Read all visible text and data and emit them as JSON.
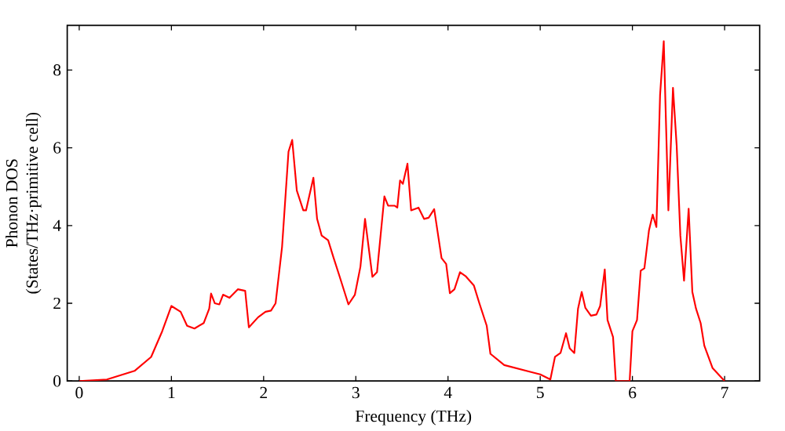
{
  "chart_data": {
    "type": "line",
    "xlabel": "Frequency (THz)",
    "ylabel": "Phonon DOS\n(States/THz·primitive cell)",
    "xlim": [
      -0.13,
      7.38
    ],
    "ylim": [
      0,
      9.15
    ],
    "xticks": [
      0,
      1,
      2,
      3,
      4,
      5,
      6,
      7
    ],
    "yticks": [
      0,
      2,
      4,
      6,
      8
    ],
    "grid": false,
    "marker": "none",
    "line_style": "solid",
    "series": [
      {
        "color": "#ff0000",
        "x": [
          0,
          0.3,
          0.6,
          0.78,
          0.9,
          1.0,
          1.1,
          1.17,
          1.25,
          1.35,
          1.41,
          1.43,
          1.47,
          1.52,
          1.56,
          1.63,
          1.72,
          1.8,
          1.84,
          1.94,
          2.02,
          2.08,
          2.13,
          2.2,
          2.27,
          2.31,
          2.36,
          2.43,
          2.46,
          2.54,
          2.58,
          2.63,
          2.7,
          2.76,
          2.82,
          2.92,
          2.99,
          3.05,
          3.1,
          3.18,
          3.23,
          3.31,
          3.35,
          3.42,
          3.45,
          3.48,
          3.51,
          3.56,
          3.6,
          3.68,
          3.74,
          3.79,
          3.85,
          3.93,
          3.98,
          4.02,
          4.07,
          4.13,
          4.19,
          4.28,
          4.34,
          4.42,
          4.46,
          4.61,
          4.9,
          5.0,
          5.11,
          5.16,
          5.22,
          5.28,
          5.32,
          5.37,
          5.41,
          5.45,
          5.49,
          5.55,
          5.61,
          5.65,
          5.7,
          5.73,
          5.79,
          5.82,
          5.97,
          6.0,
          6.05,
          6.09,
          6.13,
          6.18,
          6.22,
          6.26,
          6.3,
          6.34,
          6.39,
          6.44,
          6.48,
          6.52,
          6.56,
          6.61,
          6.65,
          6.69,
          6.74,
          6.78,
          6.87,
          7.0
        ],
        "values": [
          0,
          0.04,
          0.26,
          0.62,
          1.28,
          1.93,
          1.78,
          1.42,
          1.35,
          1.49,
          1.86,
          2.25,
          2.0,
          1.97,
          2.22,
          2.14,
          2.36,
          2.32,
          1.38,
          1.64,
          1.78,
          1.81,
          2.0,
          3.45,
          5.9,
          6.2,
          4.9,
          4.39,
          4.39,
          5.23,
          4.17,
          3.74,
          3.62,
          3.16,
          2.72,
          1.97,
          2.22,
          2.94,
          4.17,
          2.68,
          2.8,
          4.75,
          4.51,
          4.51,
          4.46,
          5.16,
          5.07,
          5.59,
          4.39,
          4.46,
          4.17,
          4.2,
          4.42,
          3.16,
          3.01,
          2.26,
          2.36,
          2.8,
          2.7,
          2.46,
          2.0,
          1.42,
          0.7,
          0.41,
          0.23,
          0.17,
          0.04,
          0.62,
          0.72,
          1.23,
          0.84,
          0.72,
          1.86,
          2.29,
          1.88,
          1.68,
          1.71,
          1.93,
          2.87,
          1.57,
          1.13,
          0,
          0,
          1.28,
          1.57,
          2.84,
          2.9,
          3.88,
          4.28,
          3.96,
          7.36,
          8.74,
          4.39,
          7.54,
          6.06,
          3.74,
          2.58,
          4.43,
          2.29,
          1.86,
          1.49,
          0.91,
          0.33,
          0
        ]
      }
    ]
  }
}
